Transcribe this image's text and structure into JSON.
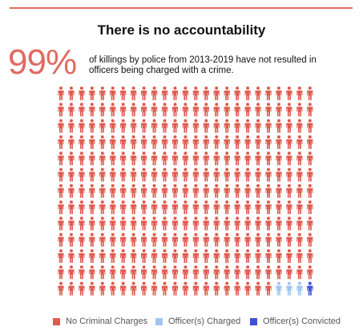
{
  "title": "There is no accountability",
  "headline_value": "99%",
  "headline_text": "of killings by police from 2013-2019 have not resulted in officers being charged with a crime.",
  "colors": {
    "accent": "#e06a63",
    "no_charges": "#e05a4e",
    "charged": "#9fc5ef",
    "convicted": "#3f51d6"
  },
  "chart_data": {
    "type": "waffle",
    "icon": "person-icon",
    "rows": 13,
    "columns": 25,
    "total_icons": 325,
    "categories": [
      "No Criminal Charges",
      "Officer(s) Charged",
      "Officer(s) Convicted"
    ],
    "values": [
      321,
      3,
      1
    ],
    "colors": [
      "#e05a4e",
      "#9fc5ef",
      "#3f51d6"
    ],
    "legend_position": "bottom"
  },
  "legend": [
    {
      "label": "No Criminal Charges",
      "color": "#e05a4e"
    },
    {
      "label": "Officer(s) Charged",
      "color": "#9fc5ef"
    },
    {
      "label": "Officer(s) Convicted",
      "color": "#3f51d6"
    }
  ]
}
